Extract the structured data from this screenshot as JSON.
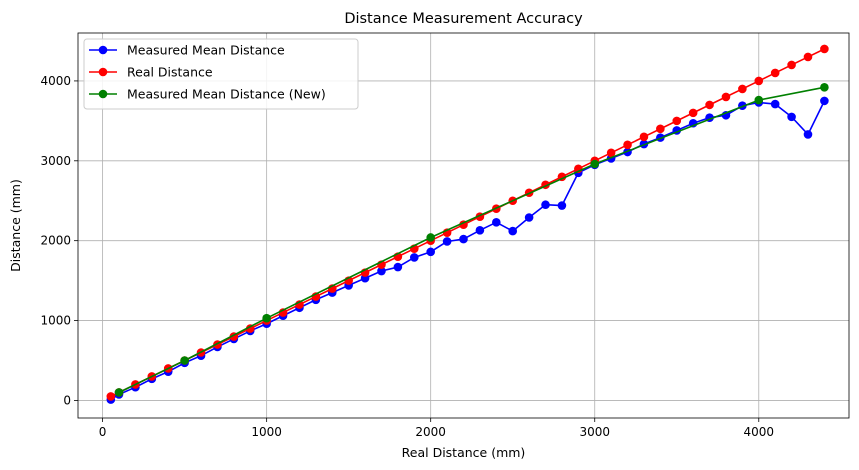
{
  "chart_data": {
    "type": "line",
    "title": "Distance Measurement Accuracy",
    "xlabel": "Real Distance (mm)",
    "ylabel": "Distance (mm)",
    "xlim": [
      -150,
      4550
    ],
    "ylim": [
      -220,
      4600
    ],
    "xticks": [
      0,
      1000,
      2000,
      3000,
      4000
    ],
    "yticks": [
      0,
      1000,
      2000,
      3000,
      4000
    ],
    "grid": true,
    "legend_position": "top-left",
    "series": [
      {
        "name": "Measured Mean Distance",
        "color": "#0000ff",
        "points": [
          [
            50,
            10
          ],
          [
            100,
            75
          ],
          [
            200,
            165
          ],
          [
            300,
            270
          ],
          [
            400,
            360
          ],
          [
            500,
            470
          ],
          [
            600,
            560
          ],
          [
            700,
            670
          ],
          [
            800,
            770
          ],
          [
            900,
            870
          ],
          [
            1000,
            960
          ],
          [
            1100,
            1060
          ],
          [
            1200,
            1160
          ],
          [
            1300,
            1260
          ],
          [
            1400,
            1350
          ],
          [
            1500,
            1440
          ],
          [
            1600,
            1530
          ],
          [
            1700,
            1620
          ],
          [
            1800,
            1670
          ],
          [
            1900,
            1790
          ],
          [
            2000,
            1860
          ],
          [
            2100,
            1990
          ],
          [
            2200,
            2020
          ],
          [
            2300,
            2130
          ],
          [
            2400,
            2230
          ],
          [
            2500,
            2120
          ],
          [
            2600,
            2290
          ],
          [
            2700,
            2450
          ],
          [
            2800,
            2440
          ],
          [
            2900,
            2850
          ],
          [
            3000,
            2950
          ],
          [
            3100,
            3030
          ],
          [
            3200,
            3110
          ],
          [
            3300,
            3210
          ],
          [
            3400,
            3290
          ],
          [
            3500,
            3380
          ],
          [
            3600,
            3470
          ],
          [
            3700,
            3540
          ],
          [
            3800,
            3570
          ],
          [
            3900,
            3690
          ],
          [
            4000,
            3730
          ],
          [
            4100,
            3710
          ],
          [
            4200,
            3550
          ],
          [
            4300,
            3330
          ],
          [
            4400,
            3750
          ]
        ]
      },
      {
        "name": "Real Distance",
        "color": "#ff0000",
        "points": [
          [
            50,
            50
          ],
          [
            100,
            100
          ],
          [
            200,
            200
          ],
          [
            300,
            300
          ],
          [
            400,
            400
          ],
          [
            500,
            500
          ],
          [
            600,
            600
          ],
          [
            700,
            700
          ],
          [
            800,
            800
          ],
          [
            900,
            900
          ],
          [
            1000,
            1000
          ],
          [
            1100,
            1100
          ],
          [
            1200,
            1200
          ],
          [
            1300,
            1300
          ],
          [
            1400,
            1400
          ],
          [
            1500,
            1500
          ],
          [
            1600,
            1600
          ],
          [
            1700,
            1700
          ],
          [
            1800,
            1800
          ],
          [
            1900,
            1900
          ],
          [
            2000,
            2000
          ],
          [
            2100,
            2100
          ],
          [
            2200,
            2200
          ],
          [
            2300,
            2300
          ],
          [
            2400,
            2400
          ],
          [
            2500,
            2500
          ],
          [
            2600,
            2600
          ],
          [
            2700,
            2700
          ],
          [
            2800,
            2800
          ],
          [
            2900,
            2900
          ],
          [
            3000,
            3000
          ],
          [
            3100,
            3100
          ],
          [
            3200,
            3200
          ],
          [
            3300,
            3300
          ],
          [
            3400,
            3400
          ],
          [
            3500,
            3500
          ],
          [
            3600,
            3600
          ],
          [
            3700,
            3700
          ],
          [
            3800,
            3800
          ],
          [
            3900,
            3900
          ],
          [
            4000,
            4000
          ],
          [
            4100,
            4100
          ],
          [
            4200,
            4200
          ],
          [
            4300,
            4300
          ],
          [
            4400,
            4400
          ]
        ]
      },
      {
        "name": "Measured Mean Distance (New)",
        "color": "#008000",
        "points": [
          [
            100,
            100
          ],
          [
            500,
            500
          ],
          [
            1000,
            1030
          ],
          [
            2000,
            2040
          ],
          [
            3000,
            2960
          ],
          [
            4000,
            3760
          ],
          [
            4400,
            3920
          ]
        ]
      }
    ]
  }
}
